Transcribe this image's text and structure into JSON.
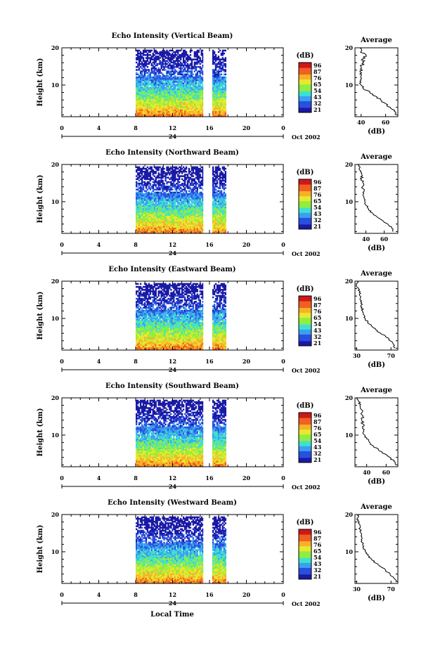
{
  "figure": {
    "date_label": "Oct 2002",
    "x_axis_label": "Local Time",
    "y_axis_label": "Height (km)",
    "day_label": "24",
    "colorbar_title": "(dB)",
    "colorbar_ticks": [
      "96",
      "87",
      "76",
      "65",
      "54",
      "43",
      "32",
      "21"
    ],
    "avg_title": "Average",
    "avg_xunit": "(dB)",
    "colormap": [
      "#1a1aa6",
      "#2a4fe0",
      "#3aa0f0",
      "#40e0d0",
      "#90ee40",
      "#e8e830",
      "#f8b028",
      "#f06020",
      "#d01818"
    ]
  },
  "chart_data": [
    {
      "type": "heatmap",
      "title": "Echo Intensity (Vertical Beam)",
      "xlabel": "Local Time",
      "ylabel": "Height (km)",
      "xlim": [
        0,
        24
      ],
      "ylim": [
        1.5,
        20
      ],
      "xticks": [
        "0",
        "4",
        "8",
        "12",
        "16",
        "20",
        "0"
      ],
      "yticks": [
        "10",
        "20"
      ],
      "data_segments": [
        [
          8,
          15.3
        ],
        [
          16.3,
          17.8
        ]
      ],
      "colorbar": {
        "label": "(dB)",
        "range": [
          21,
          96
        ]
      },
      "profile": {
        "title": "Average",
        "xlabel": "(dB)",
        "xlim": [
          35,
          70
        ],
        "xticks": [
          "40",
          "60"
        ],
        "ylim": [
          1.5,
          20
        ],
        "yticks": [
          "10",
          "20"
        ],
        "height": [
          2,
          3,
          4,
          5,
          6,
          7,
          8,
          9,
          10,
          11,
          12,
          13,
          14,
          15,
          16,
          17,
          18,
          19,
          20
        ],
        "value": [
          68,
          67,
          64,
          60,
          56,
          52,
          47,
          42,
          40,
          39,
          40,
          39,
          41,
          40,
          42,
          41,
          44,
          40,
          39
        ]
      }
    },
    {
      "type": "heatmap",
      "title": "Echo Intensity (Northward Beam)",
      "xlabel": "Local Time",
      "ylabel": "Height (km)",
      "xlim": [
        0,
        24
      ],
      "ylim": [
        1.5,
        20
      ],
      "xticks": [
        "0",
        "4",
        "8",
        "12",
        "16",
        "20",
        "0"
      ],
      "yticks": [
        "10",
        "20"
      ],
      "data_segments": [
        [
          8,
          15.3
        ],
        [
          16.3,
          17.8
        ]
      ],
      "colorbar": {
        "label": "(dB)",
        "range": [
          21,
          96
        ]
      },
      "profile": {
        "title": "Average",
        "xlabel": "(dB)",
        "xlim": [
          28,
          75
        ],
        "xticks": [
          "40",
          "60"
        ],
        "ylim": [
          1.5,
          20
        ],
        "yticks": [
          "10",
          "20"
        ],
        "height": [
          2,
          3,
          4,
          5,
          6,
          7,
          8,
          9,
          10,
          11,
          12,
          13,
          14,
          15,
          16,
          17,
          18,
          19,
          20
        ],
        "value": [
          70,
          68,
          64,
          58,
          52,
          47,
          43,
          40,
          39,
          38,
          37,
          38,
          36,
          37,
          35,
          36,
          34,
          33,
          31
        ]
      }
    },
    {
      "type": "heatmap",
      "title": "Echo Intensity (Eastward Beam)",
      "xlabel": "Local Time",
      "ylabel": "Height (km)",
      "xlim": [
        0,
        24
      ],
      "ylim": [
        1.5,
        20
      ],
      "xticks": [
        "0",
        "4",
        "8",
        "12",
        "16",
        "20",
        "0"
      ],
      "yticks": [
        "10",
        "20"
      ],
      "data_segments": [
        [
          8,
          15.3
        ],
        [
          16.3,
          17.8
        ]
      ],
      "colorbar": {
        "label": "(dB)",
        "range": [
          21,
          96
        ]
      },
      "profile": {
        "title": "Average",
        "xlabel": "(dB)",
        "xlim": [
          28,
          78
        ],
        "xticks": [
          "30",
          "70"
        ],
        "ylim": [
          1.5,
          20
        ],
        "yticks": [
          "10",
          "20"
        ],
        "height": [
          2,
          3,
          4,
          5,
          6,
          7,
          8,
          9,
          10,
          11,
          12,
          13,
          14,
          15,
          16,
          17,
          18,
          19,
          20
        ],
        "value": [
          75,
          73,
          69,
          64,
          58,
          52,
          47,
          43,
          40,
          38,
          37,
          36,
          35,
          34,
          34,
          33,
          32,
          30,
          31
        ]
      }
    },
    {
      "type": "heatmap",
      "title": "Echo Intensity (Southward Beam)",
      "xlabel": "Local Time",
      "ylabel": "Height (km)",
      "xlim": [
        0,
        24
      ],
      "ylim": [
        1.5,
        20
      ],
      "xticks": [
        "0",
        "4",
        "8",
        "12",
        "16",
        "20",
        "0"
      ],
      "yticks": [
        "10",
        "20"
      ],
      "data_segments": [
        [
          8,
          15.3
        ],
        [
          16.3,
          17.8
        ]
      ],
      "colorbar": {
        "label": "(dB)",
        "range": [
          21,
          96
        ]
      },
      "profile": {
        "title": "Average",
        "xlabel": "(dB)",
        "xlim": [
          28,
          72
        ],
        "xticks": [
          "40",
          "60"
        ],
        "ylim": [
          1.5,
          20
        ],
        "yticks": [
          "10",
          "20"
        ],
        "height": [
          2,
          3,
          4,
          5,
          6,
          7,
          8,
          9,
          10,
          11,
          12,
          13,
          14,
          15,
          16,
          17,
          18,
          19,
          20
        ],
        "value": [
          70,
          68,
          64,
          58,
          52,
          47,
          43,
          40,
          38,
          37,
          36,
          36,
          35,
          36,
          35,
          34,
          33,
          32,
          31
        ]
      }
    },
    {
      "type": "heatmap",
      "title": "Echo Intensity (Westward Beam)",
      "xlabel": "Local Time",
      "ylabel": "Height (km)",
      "xlim": [
        0,
        24
      ],
      "ylim": [
        1.5,
        20
      ],
      "xticks": [
        "0",
        "4",
        "8",
        "12",
        "16",
        "20",
        "0"
      ],
      "yticks": [
        "10",
        "20"
      ],
      "data_segments": [
        [
          8,
          15.3
        ],
        [
          16.3,
          17.8
        ]
      ],
      "colorbar": {
        "label": "(dB)",
        "range": [
          21,
          96
        ]
      },
      "profile": {
        "title": "Average",
        "xlabel": "(dB)",
        "xlim": [
          28,
          78
        ],
        "xticks": [
          "30",
          "70"
        ],
        "ylim": [
          1.5,
          20
        ],
        "yticks": [
          "10",
          "20"
        ],
        "height": [
          2,
          3,
          4,
          5,
          6,
          7,
          8,
          9,
          10,
          11,
          12,
          13,
          14,
          15,
          16,
          17,
          18,
          19,
          20
        ],
        "value": [
          76,
          73,
          69,
          64,
          58,
          52,
          47,
          43,
          40,
          38,
          37,
          36,
          36,
          35,
          34,
          34,
          33,
          31,
          33
        ]
      }
    }
  ]
}
